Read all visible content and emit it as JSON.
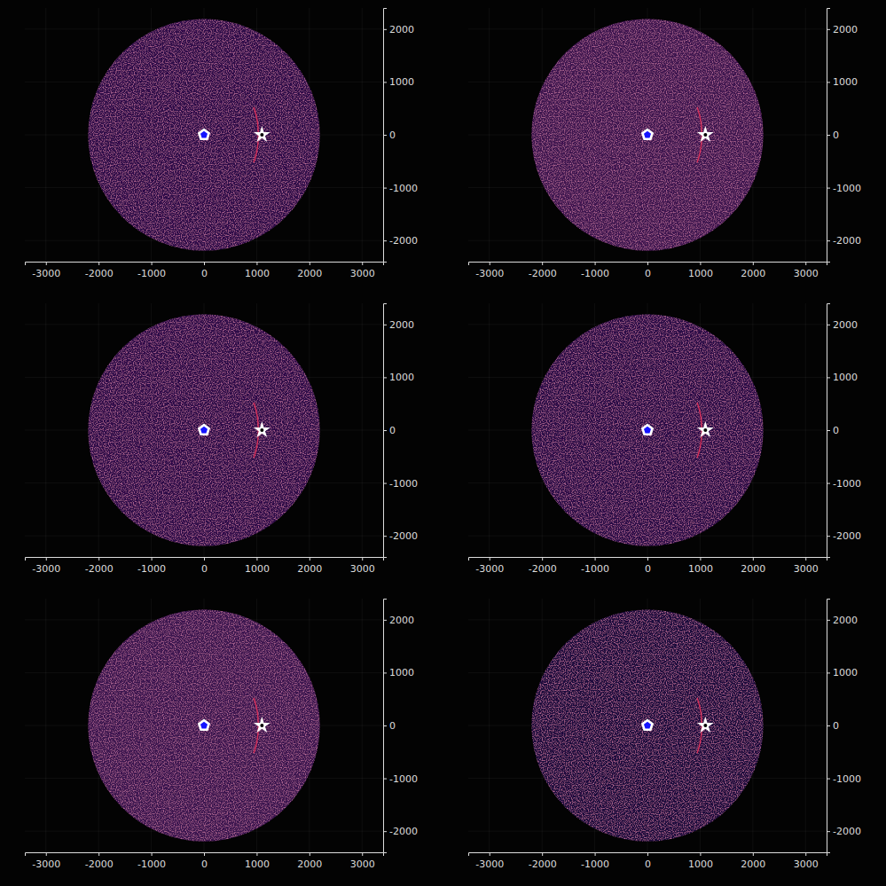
{
  "chart_data": [
    {
      "type": "scatter",
      "xlim": [
        -3400,
        3400
      ],
      "ylim": [
        -2400,
        2400
      ],
      "xticks": [
        -3000,
        -2000,
        -1000,
        0,
        1000,
        2000,
        3000
      ],
      "yticks": [
        -2000,
        -1000,
        0,
        1000,
        2000
      ],
      "grid": true,
      "series": [
        {
          "type": "bubble",
          "color": "#2e1048",
          "x": [
            0
          ],
          "values": [
            0
          ],
          "size": [
            2200
          ]
        },
        {
          "type": "line",
          "color": "#d8305a",
          "x": [
            945,
            985,
            1012,
            1026,
            1030,
            1026,
            1012,
            985,
            945
          ],
          "values": [
            -520,
            -390,
            -260,
            -130,
            0,
            130,
            260,
            390,
            520
          ]
        },
        {
          "type": "scatter",
          "marker": "pentagon",
          "color": "#1414ff",
          "x": [
            0
          ],
          "values": [
            0
          ]
        },
        {
          "type": "scatter",
          "marker": "star",
          "color": "#ffffff",
          "x": [
            1100
          ],
          "values": [
            0
          ]
        }
      ]
    },
    {
      "type": "scatter",
      "xlim": [
        -3400,
        3400
      ],
      "ylim": [
        -2400,
        2400
      ],
      "xticks": [
        -3000,
        -2000,
        -1000,
        0,
        1000,
        2000,
        3000
      ],
      "yticks": [
        -2000,
        -1000,
        0,
        1000,
        2000
      ],
      "grid": true,
      "series": [
        {
          "type": "bubble",
          "color": "#3d1550",
          "x": [
            0
          ],
          "values": [
            0
          ],
          "size": [
            2200
          ]
        },
        {
          "type": "line",
          "color": "#d8305a",
          "x": [
            945,
            985,
            1012,
            1026,
            1030,
            1026,
            1012,
            985,
            945
          ],
          "values": [
            -520,
            -390,
            -260,
            -130,
            0,
            130,
            260,
            390,
            520
          ]
        },
        {
          "type": "scatter",
          "marker": "pentagon",
          "color": "#1414ff",
          "x": [
            0
          ],
          "values": [
            0
          ]
        },
        {
          "type": "scatter",
          "marker": "star",
          "color": "#ffffff",
          "x": [
            1100
          ],
          "values": [
            0
          ]
        }
      ]
    },
    {
      "type": "scatter",
      "xlim": [
        -3400,
        3400
      ],
      "ylim": [
        -2400,
        2400
      ],
      "xticks": [
        -3000,
        -2000,
        -1000,
        0,
        1000,
        2000,
        3000
      ],
      "yticks": [
        -2000,
        -1000,
        0,
        1000,
        2000
      ],
      "grid": true,
      "series": [
        {
          "type": "bubble",
          "color": "#2e1048",
          "x": [
            0
          ],
          "values": [
            0
          ],
          "size": [
            2200
          ]
        },
        {
          "type": "line",
          "color": "#d8305a",
          "x": [
            945,
            985,
            1012,
            1026,
            1030,
            1026,
            1012,
            985,
            945
          ],
          "values": [
            -520,
            -390,
            -260,
            -130,
            0,
            130,
            260,
            390,
            520
          ]
        },
        {
          "type": "scatter",
          "marker": "pentagon",
          "color": "#1414ff",
          "x": [
            0
          ],
          "values": [
            0
          ]
        },
        {
          "type": "scatter",
          "marker": "star",
          "color": "#ffffff",
          "x": [
            1100
          ],
          "values": [
            0
          ]
        }
      ]
    },
    {
      "type": "scatter",
      "xlim": [
        -3400,
        3400
      ],
      "ylim": [
        -2400,
        2400
      ],
      "xticks": [
        -3000,
        -2000,
        -1000,
        0,
        1000,
        2000,
        3000
      ],
      "yticks": [
        -2000,
        -1000,
        0,
        1000,
        2000
      ],
      "grid": true,
      "series": [
        {
          "type": "bubble",
          "color": "#2a0f46",
          "x": [
            0
          ],
          "values": [
            0
          ],
          "size": [
            2200
          ]
        },
        {
          "type": "line",
          "color": "#d8305a",
          "x": [
            945,
            985,
            1012,
            1026,
            1030,
            1026,
            1012,
            985,
            945
          ],
          "values": [
            -520,
            -390,
            -260,
            -130,
            0,
            130,
            260,
            390,
            520
          ]
        },
        {
          "type": "scatter",
          "marker": "pentagon",
          "color": "#1414ff",
          "x": [
            0
          ],
          "values": [
            0
          ]
        },
        {
          "type": "scatter",
          "marker": "star",
          "color": "#ffffff",
          "x": [
            1100
          ],
          "values": [
            0
          ]
        }
      ]
    },
    {
      "type": "scatter",
      "xlim": [
        -3400,
        3400
      ],
      "ylim": [
        -2400,
        2400
      ],
      "xticks": [
        -3000,
        -2000,
        -1000,
        0,
        1000,
        2000,
        3000
      ],
      "yticks": [
        -2000,
        -1000,
        0,
        1000,
        2000
      ],
      "grid": true,
      "series": [
        {
          "type": "bubble",
          "color": "#3a1450",
          "x": [
            0
          ],
          "values": [
            0
          ],
          "size": [
            2200
          ]
        },
        {
          "type": "line",
          "color": "#d8305a",
          "x": [
            945,
            985,
            1012,
            1026,
            1030,
            1026,
            1012,
            985,
            945
          ],
          "values": [
            -520,
            -390,
            -260,
            -130,
            0,
            130,
            260,
            390,
            520
          ]
        },
        {
          "type": "scatter",
          "marker": "pentagon",
          "color": "#1414ff",
          "x": [
            0
          ],
          "values": [
            0
          ]
        },
        {
          "type": "scatter",
          "marker": "star",
          "color": "#ffffff",
          "x": [
            1100
          ],
          "values": [
            0
          ]
        }
      ]
    },
    {
      "type": "scatter",
      "xlim": [
        -3400,
        3400
      ],
      "ylim": [
        -2400,
        2400
      ],
      "xticks": [
        -3000,
        -2000,
        -1000,
        0,
        1000,
        2000,
        3000
      ],
      "yticks": [
        -2000,
        -1000,
        0,
        1000,
        2000
      ],
      "grid": true,
      "series": [
        {
          "type": "bubble",
          "color": "#1a0b3c",
          "x": [
            0
          ],
          "values": [
            0
          ],
          "size": [
            2200
          ]
        },
        {
          "type": "line",
          "color": "#d8305a",
          "x": [
            945,
            985,
            1012,
            1026,
            1030,
            1026,
            1012,
            985,
            945
          ],
          "values": [
            -520,
            -390,
            -260,
            -130,
            0,
            130,
            260,
            390,
            520
          ]
        },
        {
          "type": "scatter",
          "marker": "pentagon",
          "color": "#1414ff",
          "x": [
            0
          ],
          "values": [
            0
          ]
        },
        {
          "type": "scatter",
          "marker": "star",
          "color": "#ffffff",
          "x": [
            1100
          ],
          "values": [
            0
          ]
        }
      ]
    }
  ]
}
